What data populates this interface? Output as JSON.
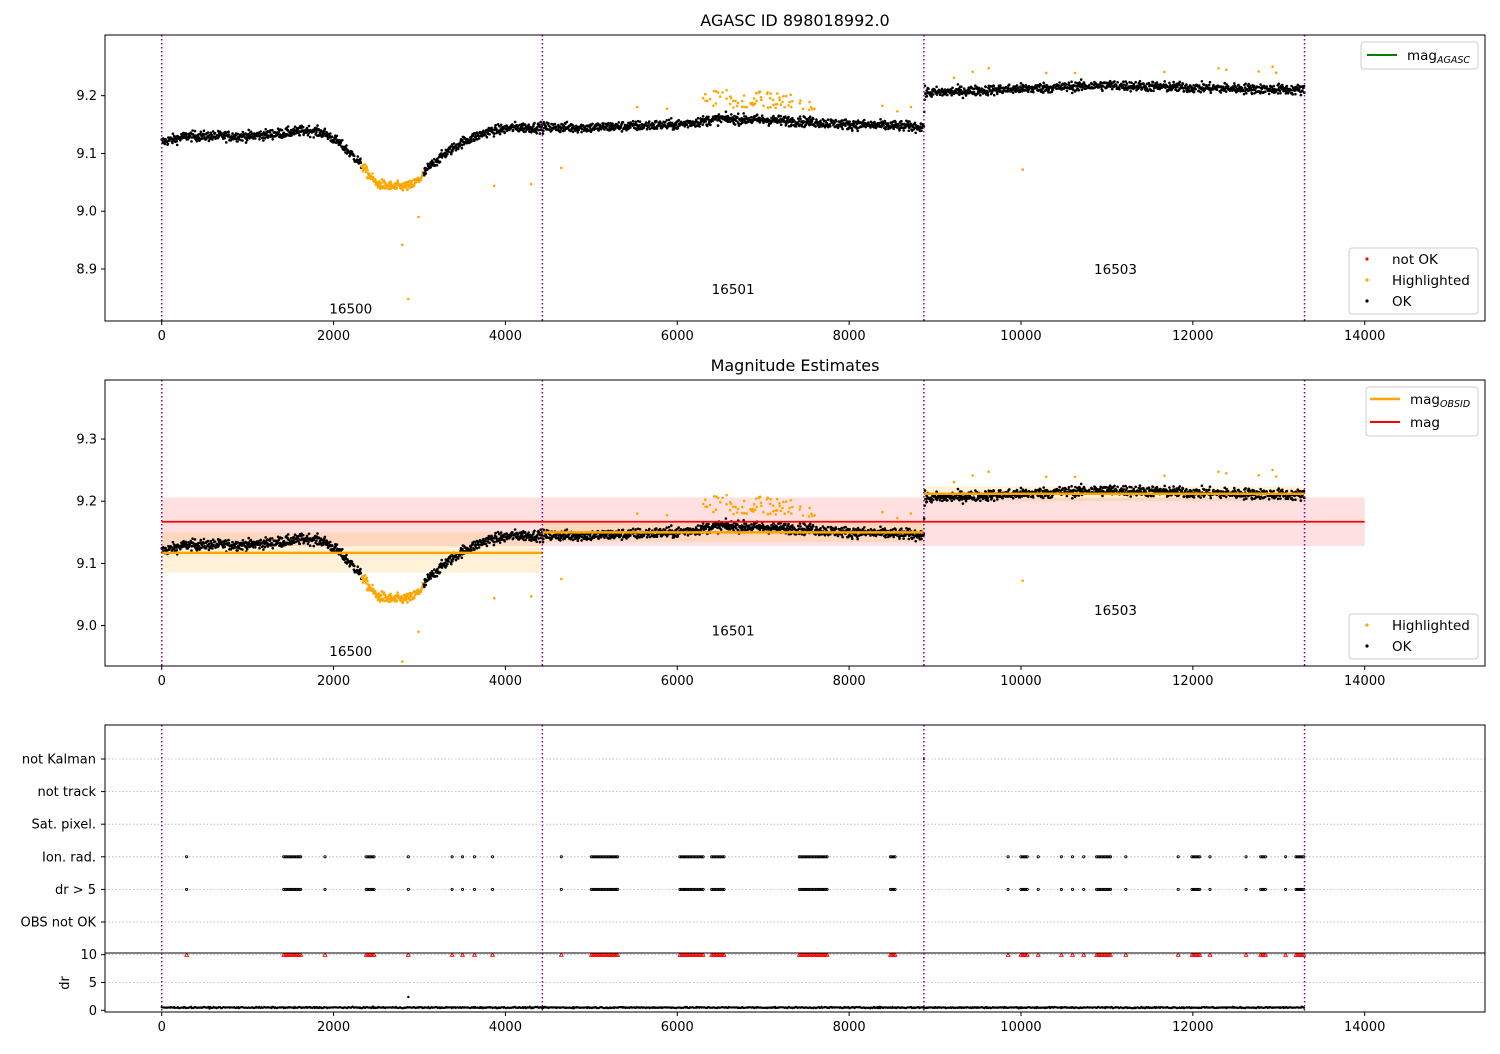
{
  "panel1": {
    "title": "AGASC ID 898018992.0",
    "ylim": [
      8.81,
      9.305
    ],
    "yticks": [
      "8.9",
      "9.0",
      "9.1",
      "9.2"
    ],
    "legend_top": {
      "base": "mag",
      "sub": "AGASC",
      "color": "#008000"
    },
    "legend_bottom": [
      {
        "label": "not OK",
        "color": "#ff0000"
      },
      {
        "label": "Highlighted",
        "color": "#ffa500"
      },
      {
        "label": "OK",
        "color": "#000000"
      }
    ],
    "obsids": [
      {
        "id": "16500",
        "x": 2200,
        "y": 8.823
      },
      {
        "id": "16501",
        "x": 6650,
        "y": 8.857
      },
      {
        "id": "16503",
        "x": 11100,
        "y": 8.891
      }
    ]
  },
  "panel2": {
    "title": "Magnitude Estimates",
    "ylim": [
      8.935,
      9.395
    ],
    "yticks": [
      "9.0",
      "9.1",
      "9.2",
      "9.3"
    ],
    "legend_top": [
      {
        "base": "mag",
        "sub": "OBSID",
        "color": "#ffa500"
      },
      {
        "base": "mag",
        "sub": "",
        "color": "#ff0000"
      }
    ],
    "legend_bottom": [
      {
        "label": "Highlighted",
        "color": "#ffa500"
      },
      {
        "label": "OK",
        "color": "#000000"
      }
    ],
    "obsids": [
      {
        "id": "16500",
        "x": 2200,
        "y": 8.951
      },
      {
        "id": "16501",
        "x": 6650,
        "y": 8.984
      },
      {
        "id": "16503",
        "x": 11100,
        "y": 9.017
      }
    ]
  },
  "panel3": {
    "flags": [
      "not Kalman",
      "not track",
      "Sat. pixel.",
      "Ion. rad.",
      "dr > 5",
      "OBS not OK"
    ],
    "dr_label": "dr",
    "dr_ticks": [
      "0",
      "5",
      "10"
    ]
  },
  "x_ticks": [
    "0",
    "2000",
    "4000",
    "6000",
    "8000",
    "10000",
    "12000",
    "14000"
  ],
  "colors": {
    "ok": "#000000",
    "highlighted": "#ffa500",
    "not_ok": "#ff0000",
    "boundary": "#800080",
    "mag_line": "#ff0000",
    "mag_obsid": "#ffa500"
  },
  "chart_data": {
    "type": "scatter",
    "x_range": [
      -660,
      15400
    ],
    "obsid_boundaries": [
      0,
      4430,
      8870,
      13300
    ],
    "obsids": [
      "16500",
      "16501",
      "16503"
    ],
    "mag_overall": {
      "value": 9.167,
      "band": [
        9.128,
        9.206
      ],
      "x_extent": [
        0,
        14000
      ]
    },
    "mag_obsid": [
      {
        "obsid": "16500",
        "value": 9.117,
        "band": [
          9.085,
          9.15
        ],
        "x": [
          0,
          4430
        ]
      },
      {
        "obsid": "16501",
        "value": 9.15,
        "band": [
          9.135,
          9.165
        ],
        "x": [
          4430,
          8870
        ]
      },
      {
        "obsid": "16503",
        "value": 9.212,
        "band": [
          9.2,
          9.224
        ],
        "x": [
          8870,
          13300
        ]
      }
    ],
    "magnitude_trend": [
      [
        0,
        9.12
      ],
      [
        300,
        9.13
      ],
      [
        600,
        9.13
      ],
      [
        1000,
        9.13
      ],
      [
        1400,
        9.135
      ],
      [
        1700,
        9.14
      ],
      [
        1900,
        9.135
      ],
      [
        2050,
        9.12
      ],
      [
        2200,
        9.1
      ],
      [
        2300,
        9.085
      ],
      [
        2400,
        9.065
      ],
      [
        2500,
        9.048
      ],
      [
        2700,
        9.042
      ],
      [
        2900,
        9.044
      ],
      [
        3000,
        9.055
      ],
      [
        3100,
        9.075
      ],
      [
        3300,
        9.1
      ],
      [
        3500,
        9.12
      ],
      [
        3800,
        9.138
      ],
      [
        4100,
        9.145
      ],
      [
        4430,
        9.145
      ],
      [
        5000,
        9.145
      ],
      [
        6000,
        9.15
      ],
      [
        6500,
        9.16
      ],
      [
        7000,
        9.158
      ],
      [
        7500,
        9.155
      ],
      [
        8000,
        9.15
      ],
      [
        8500,
        9.148
      ],
      [
        8869,
        9.146
      ],
      [
        8880,
        9.205
      ],
      [
        10000,
        9.212
      ],
      [
        11000,
        9.218
      ],
      [
        12000,
        9.214
      ],
      [
        13300,
        9.21
      ]
    ],
    "highlighted_outliers": [
      [
        2620,
        9.045
      ],
      [
        2800,
        8.942
      ],
      [
        2870,
        8.848
      ],
      [
        2990,
        8.99
      ],
      [
        3870,
        9.044
      ],
      [
        4300,
        9.047
      ],
      [
        4650,
        9.075
      ],
      [
        10020,
        9.072
      ]
    ],
    "flag_clusters_x": [
      [
        290,
        290
      ],
      [
        1420,
        1620
      ],
      [
        1900,
        1900
      ],
      [
        2380,
        2470
      ],
      [
        2870,
        2870
      ],
      [
        3380,
        3380
      ],
      [
        3500,
        3500
      ],
      [
        3640,
        3640
      ],
      [
        3850,
        3850
      ],
      [
        4650,
        4650
      ],
      [
        5000,
        5320
      ],
      [
        6030,
        6300
      ],
      [
        6400,
        6560
      ],
      [
        7420,
        7760
      ],
      [
        8480,
        8550
      ],
      [
        9850,
        9850
      ],
      [
        10000,
        10080
      ],
      [
        10200,
        10200
      ],
      [
        10470,
        10470
      ],
      [
        10600,
        10600
      ],
      [
        10730,
        10730
      ],
      [
        10880,
        11050
      ],
      [
        11220,
        11220
      ],
      [
        11830,
        11830
      ],
      [
        11990,
        12080
      ],
      [
        12200,
        12200
      ],
      [
        12620,
        12620
      ],
      [
        12790,
        12850
      ],
      [
        13080,
        13080
      ],
      [
        13200,
        13300
      ]
    ],
    "dr_baseline": 0.5,
    "dr_ylim": [
      -0.3,
      10.3
    ],
    "dr_clip": 10
  }
}
